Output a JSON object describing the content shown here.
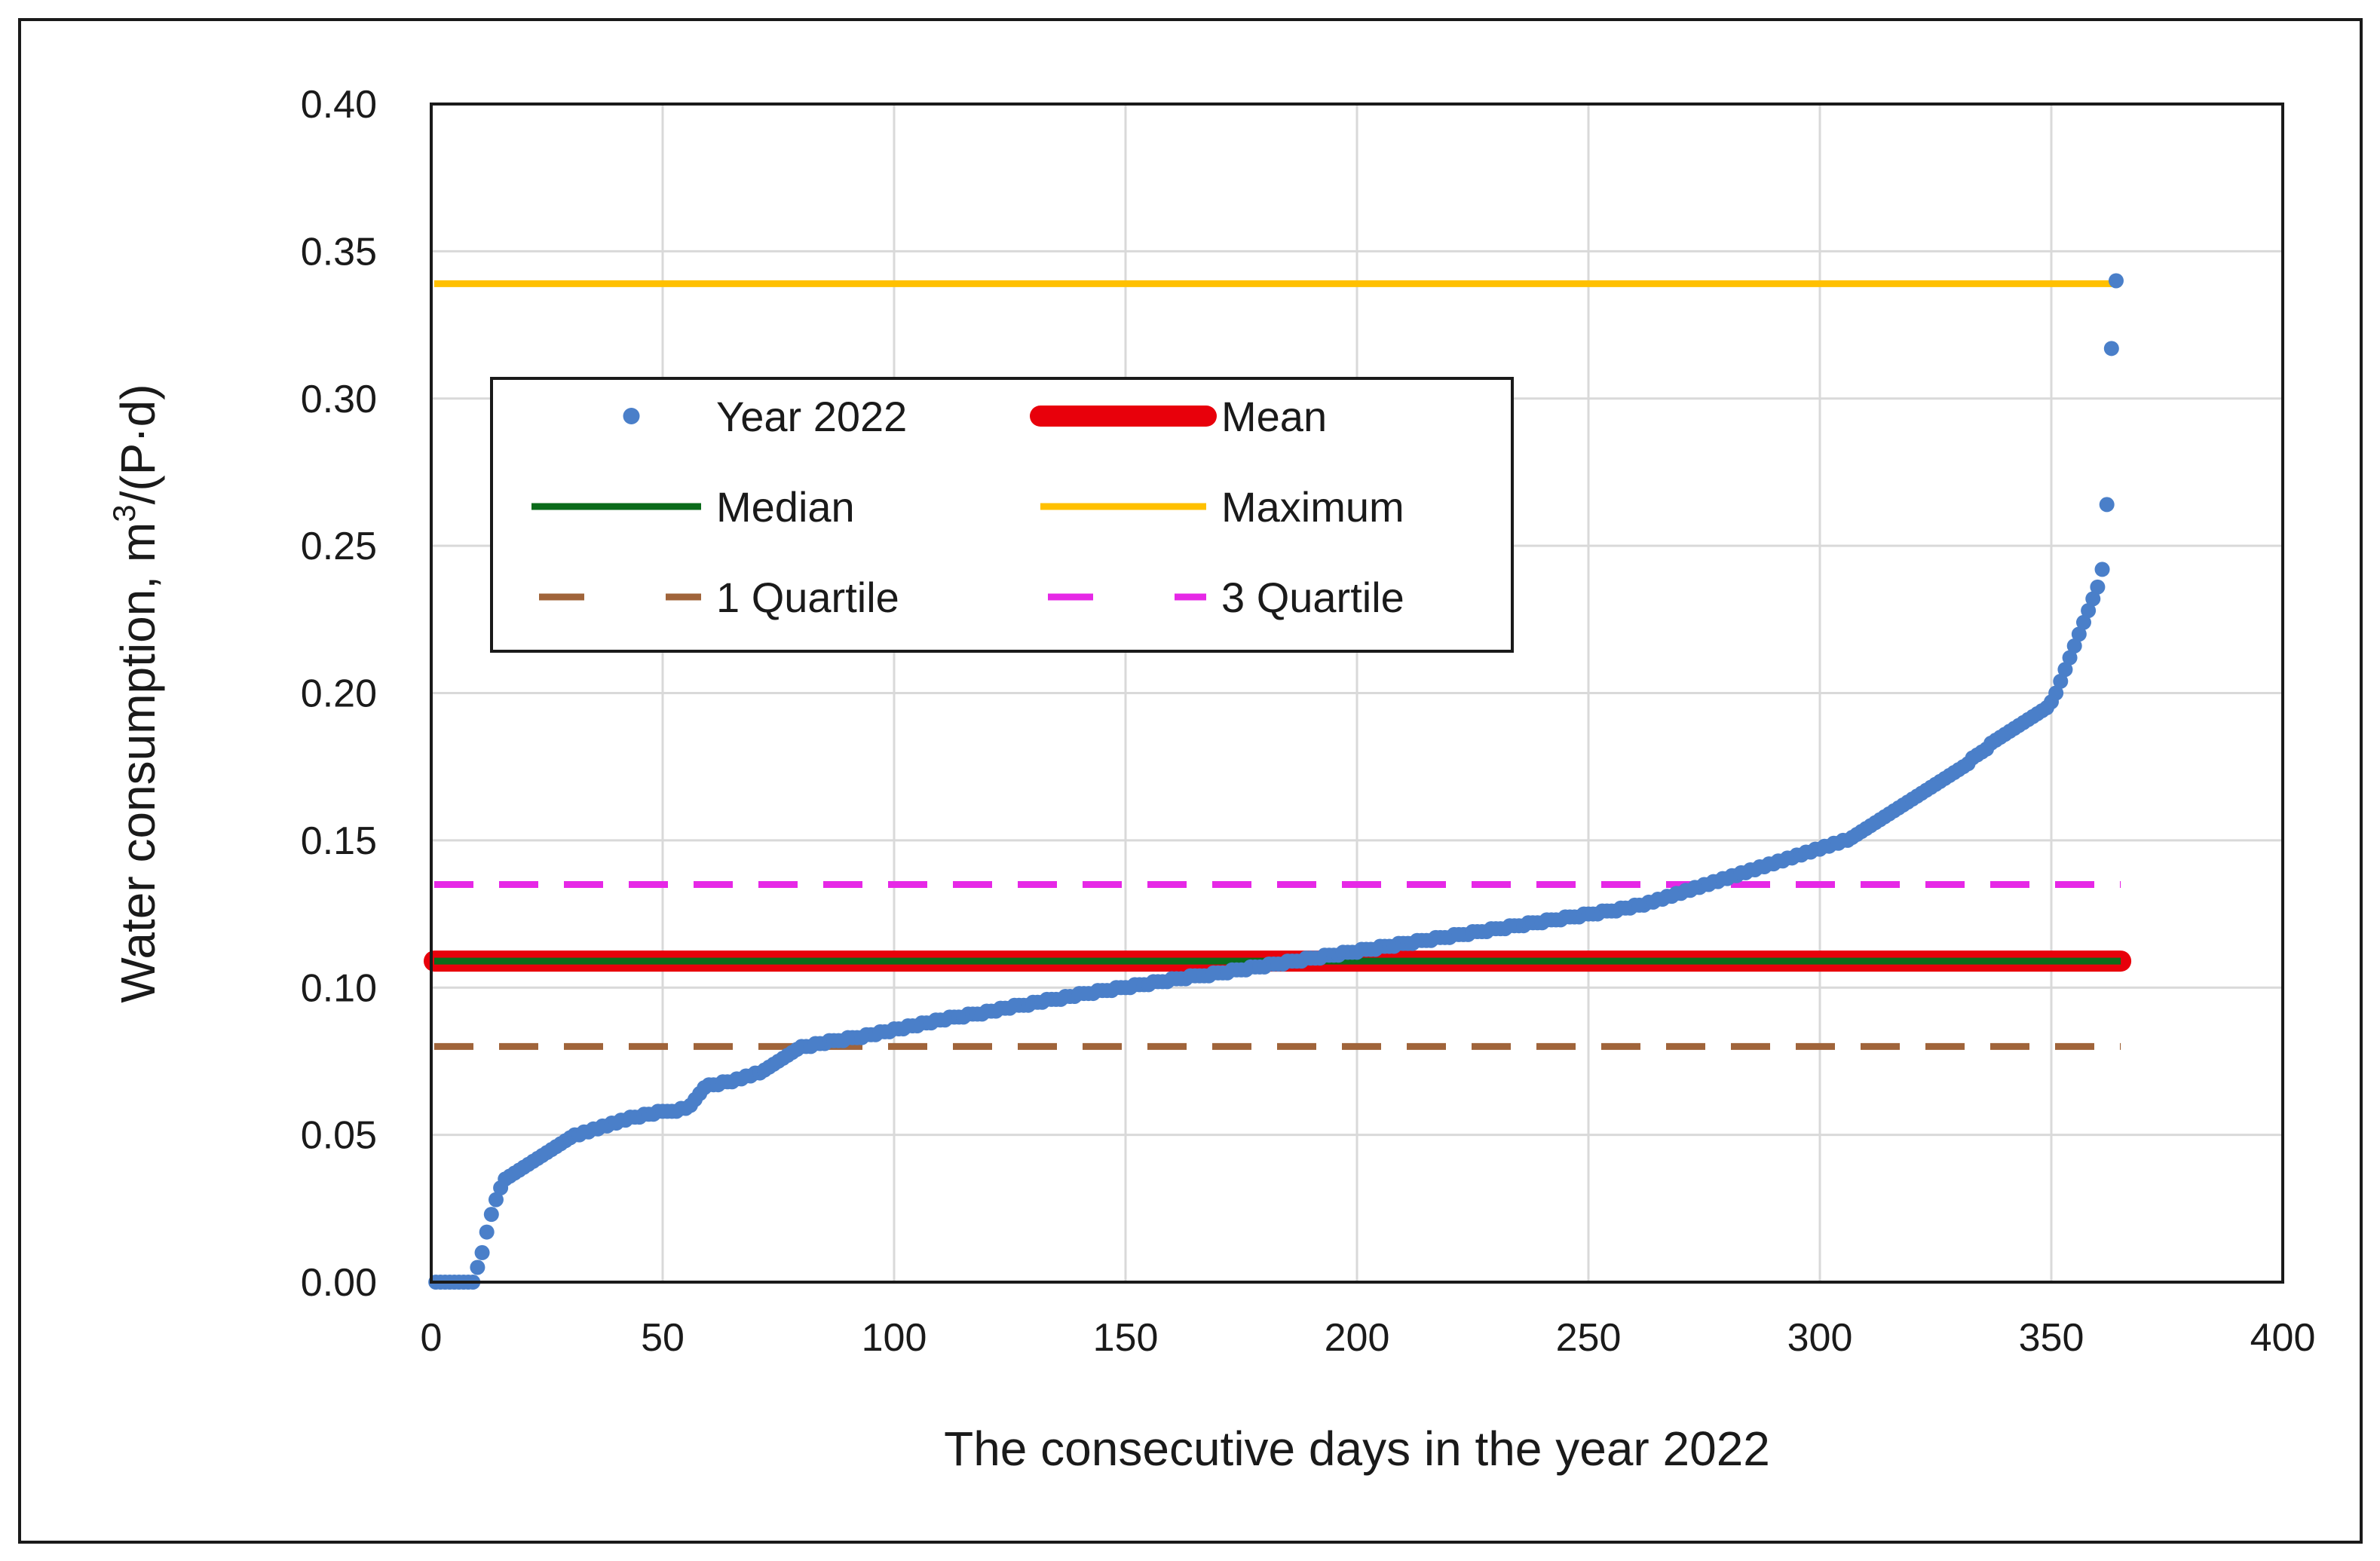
{
  "chart_data": {
    "type": "scatter",
    "xlabel": "The consecutive days in the year 2022",
    "ylabel_prefix": "Water consumption, m",
    "ylabel_sup": "3",
    "ylabel_suffix": "/(P·d)",
    "xlim": [
      0,
      400
    ],
    "ylim": [
      0,
      0.4
    ],
    "xticks": [
      "0",
      "50",
      "100",
      "150",
      "200",
      "250",
      "300",
      "350",
      "400"
    ],
    "yticks": [
      "0.00",
      "0.05",
      "0.10",
      "0.15",
      "0.20",
      "0.25",
      "0.30",
      "0.35",
      "0.40"
    ],
    "grid": true,
    "legend_position": "upper-left",
    "series": [
      {
        "name": "Year 2022",
        "kind": "points",
        "color": "#4a7fc9",
        "x_start": 1,
        "x_step": 1,
        "values": [
          0.0,
          0.0,
          0.0,
          0.0,
          0.0,
          0.0,
          0.0,
          0.0,
          0.0,
          0.005,
          0.01,
          0.017,
          0.023,
          0.028,
          0.032,
          0.035,
          0.036,
          0.037,
          0.038,
          0.039,
          0.04,
          0.041,
          0.042,
          0.043,
          0.044,
          0.045,
          0.046,
          0.047,
          0.048,
          0.049,
          0.05,
          0.05,
          0.051,
          0.051,
          0.052,
          0.052,
          0.053,
          0.053,
          0.054,
          0.054,
          0.055,
          0.055,
          0.056,
          0.056,
          0.056,
          0.057,
          0.057,
          0.057,
          0.058,
          0.058,
          0.058,
          0.058,
          0.058,
          0.059,
          0.059,
          0.06,
          0.062,
          0.064,
          0.066,
          0.067,
          0.067,
          0.067,
          0.068,
          0.068,
          0.068,
          0.069,
          0.069,
          0.07,
          0.07,
          0.071,
          0.071,
          0.072,
          0.073,
          0.074,
          0.075,
          0.076,
          0.077,
          0.078,
          0.079,
          0.08,
          0.08,
          0.08,
          0.081,
          0.081,
          0.081,
          0.082,
          0.082,
          0.082,
          0.082,
          0.083,
          0.083,
          0.083,
          0.083,
          0.084,
          0.084,
          0.084,
          0.085,
          0.085,
          0.085,
          0.086,
          0.086,
          0.086,
          0.087,
          0.087,
          0.087,
          0.088,
          0.088,
          0.088,
          0.089,
          0.089,
          0.089,
          0.09,
          0.09,
          0.09,
          0.09,
          0.091,
          0.091,
          0.091,
          0.091,
          0.092,
          0.092,
          0.092,
          0.093,
          0.093,
          0.093,
          0.094,
          0.094,
          0.094,
          0.094,
          0.095,
          0.095,
          0.095,
          0.096,
          0.096,
          0.096,
          0.096,
          0.097,
          0.097,
          0.097,
          0.098,
          0.098,
          0.098,
          0.098,
          0.099,
          0.099,
          0.099,
          0.099,
          0.1,
          0.1,
          0.1,
          0.1,
          0.101,
          0.101,
          0.101,
          0.101,
          0.102,
          0.102,
          0.102,
          0.102,
          0.103,
          0.103,
          0.103,
          0.103,
          0.104,
          0.104,
          0.104,
          0.104,
          0.104,
          0.105,
          0.105,
          0.105,
          0.105,
          0.106,
          0.106,
          0.106,
          0.106,
          0.107,
          0.107,
          0.107,
          0.107,
          0.108,
          0.108,
          0.108,
          0.108,
          0.109,
          0.109,
          0.109,
          0.109,
          0.11,
          0.11,
          0.11,
          0.11,
          0.111,
          0.111,
          0.111,
          0.111,
          0.112,
          0.112,
          0.112,
          0.112,
          0.113,
          0.113,
          0.113,
          0.113,
          0.114,
          0.114,
          0.114,
          0.114,
          0.115,
          0.115,
          0.115,
          0.115,
          0.116,
          0.116,
          0.116,
          0.116,
          0.117,
          0.117,
          0.117,
          0.117,
          0.118,
          0.118,
          0.118,
          0.118,
          0.119,
          0.119,
          0.119,
          0.119,
          0.12,
          0.12,
          0.12,
          0.12,
          0.121,
          0.121,
          0.121,
          0.121,
          0.122,
          0.122,
          0.122,
          0.122,
          0.123,
          0.123,
          0.123,
          0.123,
          0.124,
          0.124,
          0.124,
          0.124,
          0.125,
          0.125,
          0.125,
          0.125,
          0.126,
          0.126,
          0.126,
          0.126,
          0.127,
          0.127,
          0.127,
          0.128,
          0.128,
          0.128,
          0.129,
          0.129,
          0.13,
          0.13,
          0.131,
          0.131,
          0.132,
          0.132,
          0.133,
          0.133,
          0.134,
          0.134,
          0.135,
          0.135,
          0.136,
          0.136,
          0.137,
          0.137,
          0.138,
          0.138,
          0.139,
          0.139,
          0.14,
          0.14,
          0.141,
          0.141,
          0.142,
          0.142,
          0.143,
          0.143,
          0.144,
          0.144,
          0.145,
          0.145,
          0.146,
          0.146,
          0.147,
          0.147,
          0.148,
          0.148,
          0.149,
          0.149,
          0.15,
          0.15,
          0.151,
          0.152,
          0.153,
          0.154,
          0.155,
          0.156,
          0.157,
          0.158,
          0.159,
          0.16,
          0.161,
          0.162,
          0.163,
          0.164,
          0.165,
          0.166,
          0.167,
          0.168,
          0.169,
          0.17,
          0.171,
          0.172,
          0.173,
          0.174,
          0.175,
          0.176,
          0.178,
          0.179,
          0.18,
          0.181,
          0.183,
          0.184,
          0.185,
          0.186,
          0.187,
          0.188,
          0.189,
          0.19,
          0.191,
          0.192,
          0.193,
          0.194,
          0.195,
          0.197,
          0.2,
          0.204,
          0.208,
          0.212,
          0.216,
          0.22,
          0.224,
          0.228,
          0.232,
          0.236,
          0.242,
          0.264,
          0.317,
          0.34
        ]
      },
      {
        "name": "Mean",
        "kind": "hline",
        "value": 0.109,
        "color": "#e8000b",
        "style": "solid",
        "width": "thick"
      },
      {
        "name": "Median",
        "kind": "hline",
        "value": 0.109,
        "color": "#0b6b1a",
        "style": "solid",
        "width": "normal"
      },
      {
        "name": "Maximum",
        "kind": "hline",
        "value": 0.339,
        "color": "#ffc000",
        "style": "solid",
        "width": "normal"
      },
      {
        "name": "1 Quartile",
        "kind": "hline",
        "value": 0.08,
        "color": "#a0643a",
        "style": "dashed",
        "width": "normal"
      },
      {
        "name": "3 Quartile",
        "kind": "hline",
        "value": 0.135,
        "color": "#e628e6",
        "style": "dashed",
        "width": "normal"
      }
    ],
    "legend": [
      [
        "Year 2022",
        "Mean"
      ],
      [
        "Median",
        "Maximum"
      ],
      [
        "1 Quartile",
        "3 Quartile"
      ]
    ]
  }
}
